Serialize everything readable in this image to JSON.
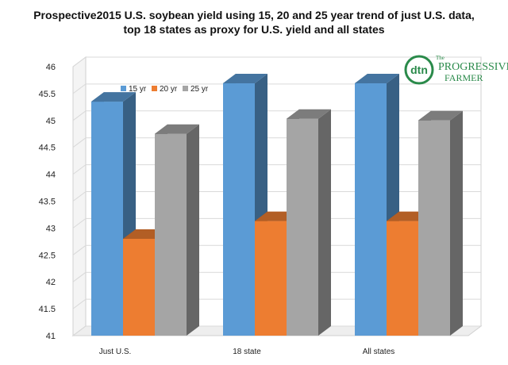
{
  "title": "Prospective2015 U.S. soybean yield using 15, 20 and 25 year trend of just U.S. data, top 18 states as proxy for U.S. yield and all states",
  "logo": {
    "mark": "dtn",
    "line1": "The",
    "line2": "PROGRESSIVE",
    "line3": "FARMER"
  },
  "chart_data": {
    "type": "bar",
    "categories": [
      "Just U.S.",
      "18 state",
      "All states"
    ],
    "series": [
      {
        "name": "15 yr",
        "color": "#5b9bd5",
        "values": [
          45.35,
          45.69,
          45.69
        ]
      },
      {
        "name": "20 yr",
        "color": "#ed7d31",
        "values": [
          42.8,
          43.13,
          43.13
        ]
      },
      {
        "name": "25 yr",
        "color": "#a5a5a5",
        "values": [
          44.75,
          45.03,
          45.0
        ]
      }
    ],
    "ylim": [
      41,
      46
    ],
    "yticks": [
      "41",
      "41.5",
      "42",
      "42.5",
      "43",
      "43.5",
      "44",
      "44.5",
      "45",
      "45.5",
      "46"
    ],
    "grid": true,
    "legend": "top-left",
    "view": "3d"
  }
}
